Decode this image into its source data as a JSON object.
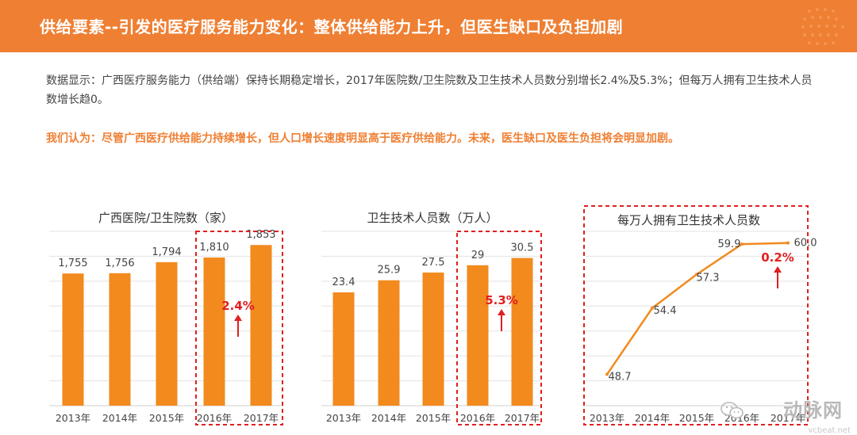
{
  "header": {
    "title": "供给要素--引发的医疗服务能力变化：整体供给能力上升，但医生缺口及负担加剧"
  },
  "summary": "数据显示：广西医疗服务能力（供给端）保持长期稳定增长，2017年医院数/卫生院数及卫生技术人员数分别增长2.4%及5.3%；但每万人拥有卫生技术人员数增长趋0。",
  "opinion": "我们认为：尽管广西医疗供给能力持续增长，但人口增长速度明显高于医疗供给能力。未来，医生缺口及医生负担将会明显加剧。",
  "colors": {
    "accent": "#ef7f32",
    "bar": "#f28a1e",
    "highlight": "#e02020"
  },
  "chart_data": [
    {
      "type": "bar",
      "title": "广西医院/卫生院数（家）",
      "categories": [
        "2013年",
        "2014年",
        "2015年",
        "2016年",
        "2017年"
      ],
      "values": [
        1755,
        1756,
        1794,
        1810,
        1853
      ],
      "labels": [
        "1,755",
        "1,756",
        "1,794",
        "1,810",
        "1,853"
      ],
      "ylim": [
        1300,
        1900
      ],
      "highlight": {
        "label": "2.4%",
        "categories": [
          "2016年",
          "2017年"
        ]
      }
    },
    {
      "type": "bar",
      "title": "卫生技术人员数（万人）",
      "categories": [
        "2013年",
        "2014年",
        "2015年",
        "2016年",
        "2017年"
      ],
      "values": [
        23.4,
        25.9,
        27.5,
        29,
        30.5
      ],
      "labels": [
        "23.4",
        "25.9",
        "27.5",
        "29",
        "30.5"
      ],
      "ylim": [
        0,
        36
      ],
      "highlight": {
        "label": "5.3%",
        "categories": [
          "2016年",
          "2017年"
        ]
      }
    },
    {
      "type": "line",
      "title": "每万人拥有卫生技术人员数",
      "categories": [
        "2013年",
        "2014年",
        "2015年",
        "2016年",
        "2017年"
      ],
      "values": [
        48.7,
        54.4,
        57.3,
        59.9,
        60.0
      ],
      "labels": [
        "48.7",
        "54.4",
        "57.3",
        "59.9",
        "60.0"
      ],
      "ylim": [
        46,
        61
      ],
      "highlight": {
        "label": "0.2%"
      }
    }
  ],
  "watermark": {
    "text": "动脉网",
    "sub": "vcbeat.net"
  }
}
